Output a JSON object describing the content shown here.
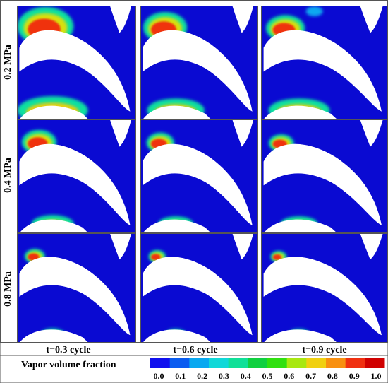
{
  "rows": [
    {
      "label": "0.2 MPa",
      "cavity_level": 1.0
    },
    {
      "label": "0.4 MPa",
      "cavity_level": 0.55
    },
    {
      "label": "0.8 MPa",
      "cavity_level": 0.25
    }
  ],
  "columns": [
    {
      "label": "t=0.3 cycle",
      "phase": 0
    },
    {
      "label": "t=0.6 cycle",
      "phase": 1
    },
    {
      "label": "t=0.9 cycle",
      "phase": 2
    }
  ],
  "colorbar": {
    "title": "Vapor volume fraction",
    "ticks": [
      "0.0",
      "0.1",
      "0.2",
      "0.3",
      "0.4",
      "0.5",
      "0.6",
      "0.7",
      "0.8",
      "0.9",
      "1.0"
    ],
    "colors": [
      "#1010ee",
      "#0a5cf0",
      "#08a8f0",
      "#10d8d8",
      "#10e098",
      "#10d040",
      "#30e010",
      "#a8e810",
      "#f0d010",
      "#f89010",
      "#f03010",
      "#d00000"
    ]
  },
  "colors": {
    "background": "#0a0ad2",
    "blade": "#ffffff",
    "border": "#555555"
  }
}
